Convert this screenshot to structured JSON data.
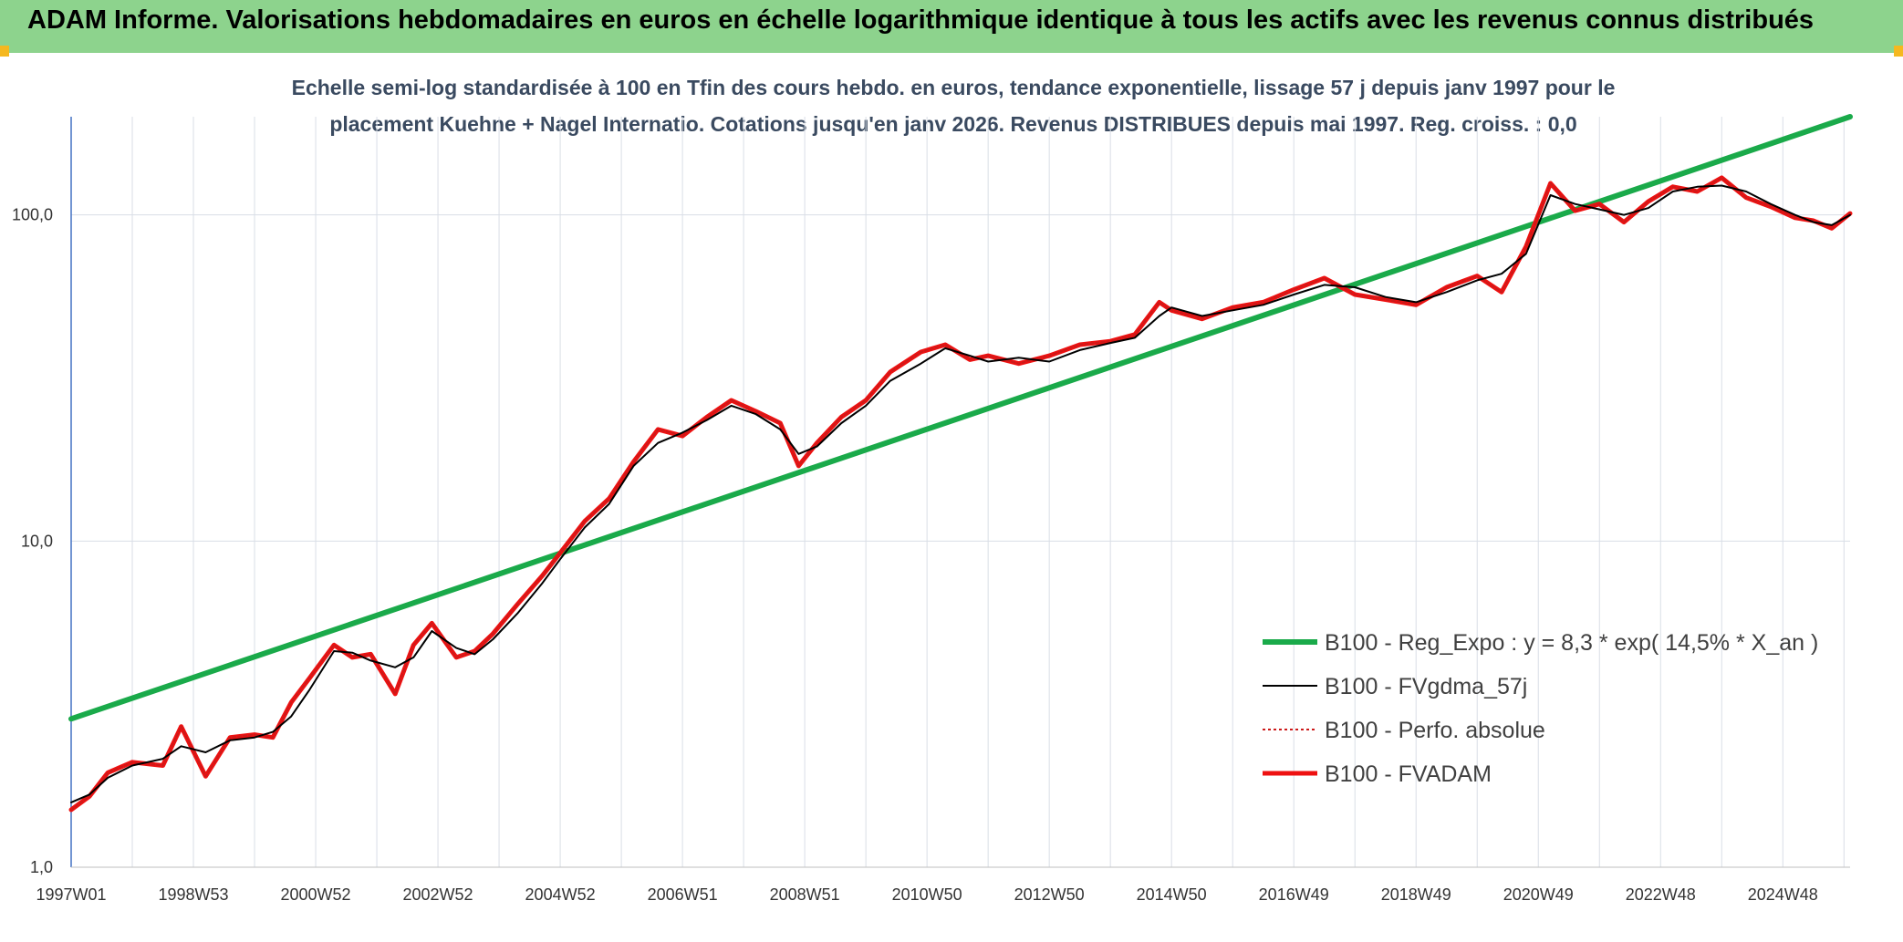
{
  "header": {
    "title": "ADAM Informe. Valorisations hebdomadaires en euros en échelle logarithmique identique à tous les actifs avec les revenus connus distribués"
  },
  "colors": {
    "banner": "#8dd38d",
    "trend": "#1aaa4a",
    "smooth": "#000000",
    "perfo": "#cc1a1a",
    "fvadam": "#ee1111",
    "grid": "#d9dee6",
    "axis": "#4472c4"
  },
  "chart_data": {
    "type": "line",
    "subtitle_lines": [
      "Echelle semi-log standardisée à 100 en Tfin des cours hebdo. en euros, tendance exponentielle, lissage 57 j depuis janv 1997 pour le",
      "placement Kuehne + Nagel Internatio. Cotations jusqu'en janv 2026. Revenus DISTRIBUES depuis mai 1997. Reg. croiss. : 0,0"
    ],
    "y_scale": "log",
    "y_range": [
      1,
      200
    ],
    "y_ticks": [
      {
        "value": 1,
        "label": "1,0"
      },
      {
        "value": 10,
        "label": "10,0"
      },
      {
        "value": 100,
        "label": "100,0"
      }
    ],
    "x_range": [
      1997.0,
      2026.1
    ],
    "x_ticks": [
      {
        "value": 1997.0,
        "label": "1997W01"
      },
      {
        "value": 1999.0,
        "label": "1998W53"
      },
      {
        "value": 2001.0,
        "label": "2000W52"
      },
      {
        "value": 2003.0,
        "label": "2002W52"
      },
      {
        "value": 2005.0,
        "label": "2004W52"
      },
      {
        "value": 2007.0,
        "label": "2006W51"
      },
      {
        "value": 2009.0,
        "label": "2008W51"
      },
      {
        "value": 2011.0,
        "label": "2010W50"
      },
      {
        "value": 2013.0,
        "label": "2012W50"
      },
      {
        "value": 2015.0,
        "label": "2014W50"
      },
      {
        "value": 2017.0,
        "label": "2016W49"
      },
      {
        "value": 2019.0,
        "label": "2018W49"
      },
      {
        "value": 2021.0,
        "label": "2020W49"
      },
      {
        "value": 2023.0,
        "label": "2022W48"
      },
      {
        "value": 2025.0,
        "label": "2024W48"
      }
    ],
    "grid": true,
    "legend_position": "bottom-right",
    "series": [
      {
        "name": "B100 - Reg_Expo : y = 8,3 * exp( 14,5% *  X_an )",
        "color": "#1aaa4a",
        "kind": "trend",
        "x": [
          1997.0,
          2026.1
        ],
        "y": [
          2.85,
          200
        ]
      },
      {
        "name": "B100 - FVgdma_57j",
        "color": "#000000",
        "kind": "smooth",
        "x": [
          1997.0,
          1997.3,
          1997.6,
          1998.0,
          1998.5,
          1998.8,
          1999.2,
          1999.6,
          2000.0,
          2000.3,
          2000.6,
          2000.9,
          2001.3,
          2001.6,
          2001.9,
          2002.3,
          2002.6,
          2002.9,
          2003.3,
          2003.6,
          2003.9,
          2004.3,
          2004.7,
          2005.0,
          2005.4,
          2005.8,
          2006.2,
          2006.6,
          2007.0,
          2007.4,
          2007.8,
          2008.2,
          2008.6,
          2008.9,
          2009.2,
          2009.6,
          2010.0,
          2010.4,
          2010.9,
          2011.3,
          2011.7,
          2012.0,
          2012.5,
          2013.0,
          2013.5,
          2014.0,
          2014.4,
          2014.8,
          2015.0,
          2015.5,
          2016.0,
          2016.5,
          2017.0,
          2017.5,
          2018.0,
          2018.5,
          2019.0,
          2019.5,
          2020.0,
          2020.4,
          2020.8,
          2021.2,
          2021.6,
          2022.0,
          2022.4,
          2022.8,
          2023.2,
          2023.6,
          2024.0,
          2024.4,
          2024.8,
          2025.2,
          2025.5,
          2025.8,
          2026.1
        ],
        "y": [
          1.58,
          1.67,
          1.88,
          2.05,
          2.15,
          2.35,
          2.25,
          2.45,
          2.5,
          2.6,
          2.9,
          3.5,
          4.6,
          4.55,
          4.3,
          4.1,
          4.4,
          5.3,
          4.7,
          4.5,
          5.0,
          6.0,
          7.4,
          8.8,
          11.0,
          13.0,
          17.0,
          20.0,
          21.5,
          23.5,
          26.0,
          24.5,
          22.0,
          18.5,
          19.5,
          23.0,
          26.0,
          31.0,
          35.0,
          39.0,
          37.0,
          35.5,
          36.5,
          35.5,
          38.5,
          40.5,
          42.0,
          49.0,
          52.0,
          49.0,
          51.0,
          53.0,
          57.0,
          61.0,
          60.0,
          56.0,
          54.0,
          58.0,
          63.0,
          66.0,
          76.0,
          115.0,
          108.0,
          104.0,
          100.0,
          105.0,
          118.0,
          122.0,
          123.0,
          118.0,
          108.0,
          100.0,
          95.0,
          93.0,
          100.0
        ]
      },
      {
        "name": "B100 - Perfo. absolue",
        "color": "#cc1a1a",
        "kind": "dotted",
        "x": [
          1997.0,
          1997.3,
          1997.6,
          1998.0,
          1998.5,
          1998.8,
          1999.2,
          1999.6,
          2000.0,
          2000.3,
          2000.6,
          2000.9,
          2001.3,
          2001.6,
          2001.9,
          2002.3,
          2002.6,
          2002.9,
          2003.3,
          2003.6,
          2003.9,
          2004.3,
          2004.7,
          2005.0,
          2005.4,
          2005.8,
          2006.2,
          2006.6,
          2007.0,
          2007.4,
          2007.8,
          2008.2,
          2008.6,
          2008.9,
          2009.2,
          2009.6,
          2010.0,
          2010.4,
          2010.9,
          2011.3,
          2011.7,
          2012.0,
          2012.5,
          2013.0,
          2013.5,
          2014.0,
          2014.4,
          2014.8,
          2015.0,
          2015.5,
          2016.0,
          2016.5,
          2017.0,
          2017.5,
          2018.0,
          2018.5,
          2019.0,
          2019.5,
          2020.0,
          2020.4,
          2020.8,
          2021.2,
          2021.6,
          2022.0,
          2022.4,
          2022.8,
          2023.2,
          2023.6,
          2024.0,
          2024.4,
          2024.8,
          2025.2,
          2025.5,
          2025.8,
          2026.1
        ],
        "y": [
          1.5,
          1.65,
          1.95,
          2.1,
          2.05,
          2.7,
          1.9,
          2.5,
          2.55,
          2.5,
          3.2,
          3.8,
          4.8,
          4.4,
          4.5,
          3.4,
          4.8,
          5.6,
          4.4,
          4.6,
          5.2,
          6.4,
          7.8,
          9.2,
          11.5,
          13.5,
          17.5,
          22.0,
          21.0,
          24.0,
          27.0,
          25.0,
          23.0,
          17.0,
          20.0,
          24.0,
          27.0,
          33.0,
          38.0,
          40.0,
          36.0,
          37.0,
          35.0,
          37.0,
          40.0,
          41.0,
          43.0,
          54.0,
          51.0,
          48.0,
          52.0,
          54.0,
          59.0,
          64.0,
          57.0,
          55.0,
          53.0,
          60.0,
          65.0,
          58.0,
          80.0,
          125.0,
          103.0,
          108.0,
          95.0,
          110.0,
          122.0,
          118.0,
          130.0,
          113.0,
          106.0,
          98.0,
          96.0,
          91.0,
          101.0
        ]
      },
      {
        "name": "B100 - FVADAM",
        "color": "#ee1111",
        "kind": "thick",
        "x": [
          1997.0,
          1997.3,
          1997.6,
          1998.0,
          1998.5,
          1998.8,
          1999.2,
          1999.6,
          2000.0,
          2000.3,
          2000.6,
          2000.9,
          2001.3,
          2001.6,
          2001.9,
          2002.3,
          2002.6,
          2002.9,
          2003.3,
          2003.6,
          2003.9,
          2004.3,
          2004.7,
          2005.0,
          2005.4,
          2005.8,
          2006.2,
          2006.6,
          2007.0,
          2007.4,
          2007.8,
          2008.2,
          2008.6,
          2008.9,
          2009.2,
          2009.6,
          2010.0,
          2010.4,
          2010.9,
          2011.3,
          2011.7,
          2012.0,
          2012.5,
          2013.0,
          2013.5,
          2014.0,
          2014.4,
          2014.8,
          2015.0,
          2015.5,
          2016.0,
          2016.5,
          2017.0,
          2017.5,
          2018.0,
          2018.5,
          2019.0,
          2019.5,
          2020.0,
          2020.4,
          2020.8,
          2021.2,
          2021.6,
          2022.0,
          2022.4,
          2022.8,
          2023.2,
          2023.6,
          2024.0,
          2024.4,
          2024.8,
          2025.2,
          2025.5,
          2025.8,
          2026.1
        ],
        "y": [
          1.5,
          1.65,
          1.95,
          2.1,
          2.05,
          2.7,
          1.9,
          2.5,
          2.55,
          2.5,
          3.2,
          3.8,
          4.8,
          4.4,
          4.5,
          3.4,
          4.8,
          5.6,
          4.4,
          4.6,
          5.2,
          6.4,
          7.8,
          9.2,
          11.5,
          13.5,
          17.5,
          22.0,
          21.0,
          24.0,
          27.0,
          25.0,
          23.0,
          17.0,
          20.0,
          24.0,
          27.0,
          33.0,
          38.0,
          40.0,
          36.0,
          37.0,
          35.0,
          37.0,
          40.0,
          41.0,
          43.0,
          54.0,
          51.0,
          48.0,
          52.0,
          54.0,
          59.0,
          64.0,
          57.0,
          55.0,
          53.0,
          60.0,
          65.0,
          58.0,
          80.0,
          125.0,
          103.0,
          108.0,
          95.0,
          110.0,
          122.0,
          118.0,
          130.0,
          113.0,
          106.0,
          98.0,
          96.0,
          91.0,
          101.0
        ]
      }
    ]
  }
}
